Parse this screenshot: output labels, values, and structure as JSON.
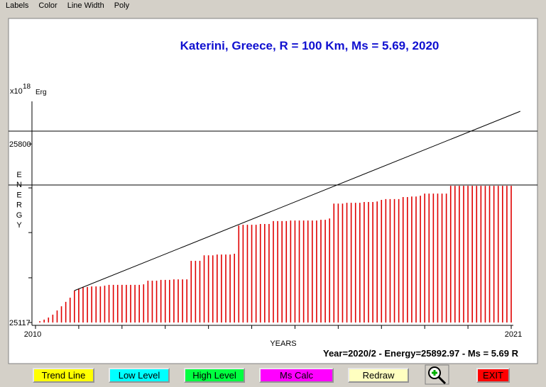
{
  "menu": [
    "Labels",
    "Color",
    "Line Width",
    "Poly"
  ],
  "chart_data": {
    "type": "bar",
    "title": "Katerini, Greece, R = 100 Km, Ms = 5.69, 2020",
    "y_unit": "x10",
    "y_exp": "18",
    "y_unit_name": "Erg",
    "y_label": "ENERGY",
    "x_label": "YEARS",
    "color": "#e00000",
    "xlim": [
      2010,
      2021
    ],
    "xticks": [
      2010,
      2021
    ],
    "xminor": [
      2011,
      2012,
      2013,
      2014,
      2015,
      2016,
      2017,
      2018,
      2019,
      2020
    ],
    "ylim": [
      25117,
      25963
    ],
    "yticks": [
      25117,
      25800
    ],
    "yminor": [
      25288,
      25461,
      25632
    ],
    "high_level": 25849,
    "low_level": 25643,
    "trend_line": {
      "x": [
        2010.9,
        2021.21
      ],
      "y": [
        25239,
        25925
      ]
    },
    "x": [
      2010.0,
      2010.1,
      2010.2,
      2010.3,
      2010.4,
      2010.5,
      2010.6,
      2010.7,
      2010.8,
      2010.9,
      2011.0,
      2011.1,
      2011.2,
      2011.3,
      2011.4,
      2011.5,
      2011.6,
      2011.7,
      2011.8,
      2011.9,
      2012.0,
      2012.1,
      2012.2,
      2012.3,
      2012.4,
      2012.5,
      2012.6,
      2012.7,
      2012.8,
      2012.9,
      2013.0,
      2013.1,
      2013.2,
      2013.3,
      2013.4,
      2013.5,
      2013.6,
      2013.7,
      2013.8,
      2013.9,
      2014.0,
      2014.1,
      2014.2,
      2014.3,
      2014.4,
      2014.5,
      2014.6,
      2014.7,
      2014.8,
      2014.9,
      2015.0,
      2015.1,
      2015.2,
      2015.3,
      2015.4,
      2015.5,
      2015.6,
      2015.7,
      2015.8,
      2015.9,
      2016.0,
      2016.1,
      2016.2,
      2016.3,
      2016.4,
      2016.5,
      2016.6,
      2016.7,
      2016.8,
      2016.9,
      2017.0,
      2017.1,
      2017.2,
      2017.3,
      2017.4,
      2017.5,
      2017.6,
      2017.7,
      2017.8,
      2017.9,
      2018.0,
      2018.1,
      2018.2,
      2018.3,
      2018.4,
      2018.5,
      2018.6,
      2018.7,
      2018.8,
      2018.9,
      2019.0,
      2019.1,
      2019.2,
      2019.3,
      2019.4,
      2019.5,
      2019.6,
      2019.7,
      2019.8,
      2019.9,
      2020.0,
      2020.1,
      2020.2,
      2020.3,
      2020.4,
      2020.5,
      2020.6,
      2020.7,
      2020.8,
      2020.9,
      2021.0
    ],
    "values": [
      25117,
      25122,
      25128,
      25136,
      25147,
      25163,
      25179,
      25196,
      25212,
      25239,
      25247,
      25253,
      25253,
      25255,
      25255,
      25255,
      25258,
      25261,
      25261,
      25261,
      25261,
      25261,
      25261,
      25261,
      25261,
      25263,
      25277,
      25277,
      25277,
      25280,
      25280,
      25280,
      25282,
      25282,
      25282,
      25282,
      25353,
      25353,
      25353,
      25374,
      25374,
      25374,
      25377,
      25377,
      25377,
      25377,
      25380,
      25488,
      25491,
      25491,
      25491,
      25491,
      25494,
      25494,
      25494,
      25505,
      25505,
      25505,
      25505,
      25507,
      25507,
      25507,
      25507,
      25507,
      25507,
      25507,
      25510,
      25510,
      25515,
      25572,
      25572,
      25572,
      25575,
      25575,
      25575,
      25575,
      25578,
      25578,
      25578,
      25580,
      25586,
      25589,
      25589,
      25589,
      25589,
      25597,
      25597,
      25599,
      25599,
      25602,
      25610,
      25610,
      25610,
      25610,
      25610,
      25610,
      25640,
      25640,
      25640,
      25640,
      25640,
      25640,
      25640,
      25640,
      25640,
      25640,
      25640,
      25640,
      25640,
      25640,
      25640
    ]
  },
  "status": "Year=2020/2 - Energy=25892.97 - Ms = 5.69 R",
  "buttons": [
    "Trend Line",
    "Low Level",
    "High Level",
    "Ms Calc",
    "Redraw",
    "EXIT"
  ]
}
